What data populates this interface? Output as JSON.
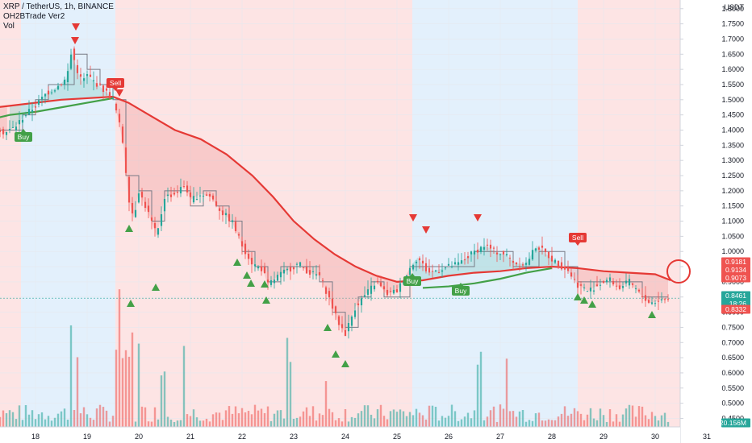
{
  "legend": {
    "symbol_line": "XRP / TetherUS, 1h, BINANCE",
    "indicator": "OH2BTrade Ver2",
    "volume": "Vol"
  },
  "price_axis": {
    "currency": "USDT",
    "ticks": [
      "1.8000",
      "1.7500",
      "1.7000",
      "1.6500",
      "1.6000",
      "1.5500",
      "1.5000",
      "1.4500",
      "1.4000",
      "1.3500",
      "1.3000",
      "1.2500",
      "1.2000",
      "1.1500",
      "1.1000",
      "1.0500",
      "1.0000",
      "0.9500",
      "0.9000",
      "0.8500",
      "0.8000",
      "0.7500",
      "0.7000",
      "0.6500",
      "0.6000",
      "0.5500",
      "0.5000",
      "0.4500"
    ]
  },
  "price_tags": [
    {
      "label": "0.9181",
      "value": 0.9181,
      "color": "#ef5350"
    },
    {
      "label": "0.9134",
      "value": 0.9134,
      "color": "#ef5350"
    },
    {
      "label": "0.9073",
      "value": 0.9073,
      "color": "#ef5350"
    },
    {
      "label": "0.8461",
      "value": 0.8461,
      "color": "#26a69a"
    },
    {
      "label": "18:26",
      "value": 0.8461,
      "color": "#26a69a",
      "below": true
    },
    {
      "label": "0.8332",
      "value": 0.8332,
      "color": "#ef5350"
    },
    {
      "label": "20.156M",
      "value": 0.41,
      "color": "#26a69a"
    }
  ],
  "time_axis": {
    "labels": [
      "18",
      "19",
      "20",
      "21",
      "22",
      "23",
      "24",
      "25",
      "26",
      "27",
      "28",
      "29",
      "30",
      "31"
    ]
  },
  "signals": [
    {
      "label": "Buy",
      "color": "#43a047"
    },
    {
      "label": "Sell",
      "color": "#e53935"
    },
    {
      "label": "Buy",
      "color": "#43a047"
    },
    {
      "label": "Buy",
      "color": "#43a047"
    },
    {
      "label": "Sell",
      "color": "#e53935"
    }
  ],
  "colors": {
    "bull": "#26a69a",
    "bear": "#ef5350",
    "bg_red": "#fde4e4",
    "bg_blue": "#e3f0fc",
    "ma_red": "#e53935",
    "ma_green": "#43a047",
    "step_line": "#787b86"
  },
  "chart_data": {
    "type": "candlestick",
    "title": "XRP / TetherUS, 1h, BINANCE",
    "y_range": [
      0.43,
      1.81
    ],
    "x_dates": [
      "18",
      "19",
      "20",
      "21",
      "22",
      "23",
      "24",
      "25",
      "26",
      "27",
      "28",
      "29",
      "30",
      "31"
    ],
    "close_path": [
      [
        17.0,
        1.44
      ],
      [
        17.2,
        1.42
      ],
      [
        17.4,
        1.39
      ],
      [
        17.6,
        1.41
      ],
      [
        17.8,
        1.45
      ],
      [
        18.0,
        1.48
      ],
      [
        18.2,
        1.52
      ],
      [
        18.4,
        1.54
      ],
      [
        18.6,
        1.57
      ],
      [
        18.7,
        1.66
      ],
      [
        18.8,
        1.6
      ],
      [
        18.9,
        1.56
      ],
      [
        19.0,
        1.58
      ],
      [
        19.2,
        1.55
      ],
      [
        19.4,
        1.52
      ],
      [
        19.5,
        1.5
      ],
      [
        19.6,
        1.44
      ],
      [
        19.7,
        1.35
      ],
      [
        19.8,
        1.18
      ],
      [
        19.9,
        1.11
      ],
      [
        20.0,
        1.2
      ],
      [
        20.2,
        1.12
      ],
      [
        20.35,
        1.05
      ],
      [
        20.5,
        1.18
      ],
      [
        20.7,
        1.19
      ],
      [
        20.9,
        1.22
      ],
      [
        21.0,
        1.17
      ],
      [
        21.2,
        1.19
      ],
      [
        21.4,
        1.18
      ],
      [
        21.6,
        1.13
      ],
      [
        21.8,
        1.1
      ],
      [
        22.0,
        1.02
      ],
      [
        22.2,
        0.96
      ],
      [
        22.4,
        0.94
      ],
      [
        22.5,
        0.89
      ],
      [
        22.7,
        0.92
      ],
      [
        22.9,
        0.94
      ],
      [
        23.1,
        0.96
      ],
      [
        23.3,
        0.93
      ],
      [
        23.5,
        0.92
      ],
      [
        23.7,
        0.84
      ],
      [
        23.85,
        0.77
      ],
      [
        24.0,
        0.73
      ],
      [
        24.2,
        0.82
      ],
      [
        24.4,
        0.86
      ],
      [
        24.6,
        0.9
      ],
      [
        24.8,
        0.86
      ],
      [
        25.0,
        0.87
      ],
      [
        25.2,
        0.93
      ],
      [
        25.3,
        0.96
      ],
      [
        25.4,
        0.98
      ],
      [
        25.6,
        0.93
      ],
      [
        25.8,
        0.94
      ],
      [
        26.0,
        0.95
      ],
      [
        26.2,
        0.96
      ],
      [
        26.5,
        1.0
      ],
      [
        26.7,
        1.02
      ],
      [
        26.9,
        1.0
      ],
      [
        27.1,
        0.99
      ],
      [
        27.3,
        0.96
      ],
      [
        27.5,
        0.96
      ],
      [
        27.7,
        1.02
      ],
      [
        27.9,
        0.99
      ],
      [
        28.1,
        0.96
      ],
      [
        28.3,
        0.94
      ],
      [
        28.5,
        0.89
      ],
      [
        28.7,
        0.87
      ],
      [
        28.9,
        0.89
      ],
      [
        29.1,
        0.91
      ],
      [
        29.3,
        0.88
      ],
      [
        29.5,
        0.9
      ],
      [
        29.7,
        0.86
      ],
      [
        29.9,
        0.83
      ],
      [
        30.1,
        0.84
      ],
      [
        30.3,
        0.846
      ]
    ],
    "ma_red": [
      [
        17.0,
        1.47
      ],
      [
        17.5,
        1.48
      ],
      [
        18.0,
        1.49
      ],
      [
        18.5,
        1.5
      ],
      [
        19.0,
        1.505
      ],
      [
        19.5,
        1.51
      ],
      [
        19.8,
        1.49
      ],
      [
        20.2,
        1.45
      ],
      [
        20.7,
        1.4
      ],
      [
        21.2,
        1.37
      ],
      [
        21.7,
        1.32
      ],
      [
        22.2,
        1.25
      ],
      [
        22.6,
        1.18
      ],
      [
        23.0,
        1.1
      ],
      [
        23.4,
        1.04
      ],
      [
        23.8,
        0.99
      ],
      [
        24.2,
        0.95
      ],
      [
        24.6,
        0.92
      ],
      [
        25.0,
        0.9
      ],
      [
        25.5,
        0.905
      ],
      [
        26.0,
        0.92
      ],
      [
        26.5,
        0.93
      ],
      [
        27.0,
        0.935
      ],
      [
        27.5,
        0.945
      ],
      [
        28.0,
        0.95
      ],
      [
        28.5,
        0.945
      ],
      [
        29.0,
        0.935
      ],
      [
        29.5,
        0.93
      ],
      [
        30.0,
        0.925
      ],
      [
        30.3,
        0.905
      ]
    ],
    "ma_green": [
      [
        17.0,
        1.43
      ],
      [
        17.5,
        1.45
      ],
      [
        18.0,
        1.46
      ],
      [
        18.5,
        1.475
      ],
      [
        19.0,
        1.49
      ],
      [
        19.5,
        1.505
      ],
      [
        25.5,
        0.88
      ],
      [
        26.0,
        0.885
      ],
      [
        26.5,
        0.895
      ],
      [
        27.0,
        0.91
      ],
      [
        27.5,
        0.93
      ],
      [
        28.0,
        0.945
      ]
    ]
  }
}
